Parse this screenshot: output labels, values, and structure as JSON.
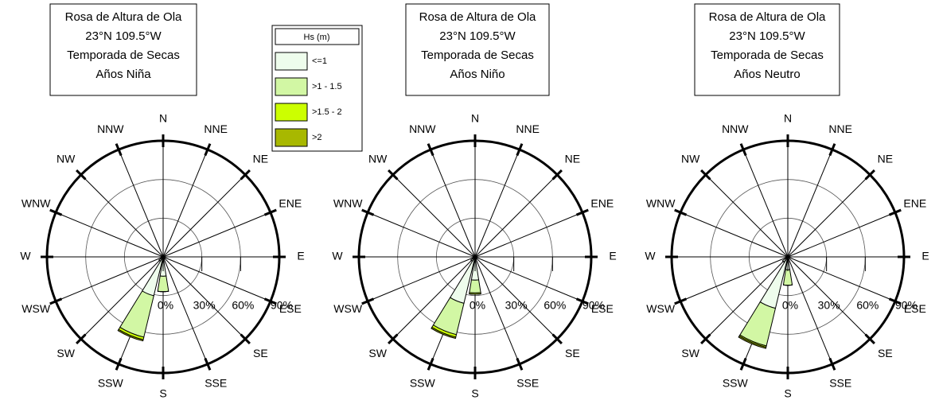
{
  "chart_data": [
    {
      "type": "rose",
      "title_lines": [
        "Rosa de Altura de Ola",
        "23°N 109.5°W",
        "Temporada de Secas",
        "Años Niña"
      ],
      "legend_title": "Hs (m)",
      "categories": [
        "N",
        "NNE",
        "NE",
        "ENE",
        "E",
        "ESE",
        "SE",
        "SSE",
        "S",
        "SSW",
        "SW",
        "WSW",
        "W",
        "WNW",
        "NW",
        "NNW"
      ],
      "rlim": [
        0,
        90
      ],
      "rticks": [
        {
          "value": 0,
          "label": "0%"
        },
        {
          "value": 30,
          "label": "30%"
        },
        {
          "value": 60,
          "label": "60%"
        },
        {
          "value": 90,
          "label": "90%"
        }
      ],
      "series": [
        {
          "name": "<=1",
          "color": "#eefcec",
          "values": [
            0,
            0,
            0,
            0,
            0,
            0,
            0,
            2,
            15,
            31,
            4,
            0,
            0,
            0,
            0,
            0
          ]
        },
        {
          "name": ">1 - 1.5",
          "color": "#d2f7a4",
          "values": [
            0,
            0,
            0,
            0,
            0,
            0,
            0,
            0,
            12,
            33,
            0,
            0,
            0,
            0,
            0,
            0
          ]
        },
        {
          "name": ">1.5 - 2",
          "color": "#ccff00",
          "values": [
            0,
            0,
            0,
            0,
            0,
            0,
            0,
            0,
            0,
            2,
            0,
            0,
            0,
            0,
            0,
            0
          ]
        },
        {
          "name": ">2",
          "color": "#a8b800",
          "values": [
            0,
            0,
            0,
            0,
            0,
            0,
            0,
            0,
            0,
            1,
            0,
            0,
            0,
            0,
            0,
            0
          ]
        }
      ]
    },
    {
      "type": "rose",
      "title_lines": [
        "Rosa de Altura de Ola",
        "23°N 109.5°W",
        "Temporada de Secas",
        "Años Niño"
      ],
      "categories": [
        "N",
        "NNE",
        "NE",
        "ENE",
        "E",
        "ESE",
        "SE",
        "SSE",
        "S",
        "SSW",
        "SW",
        "WSW",
        "W",
        "WNW",
        "NW",
        "NNW"
      ],
      "rlim": [
        0,
        90
      ],
      "rticks": [
        {
          "value": 0,
          "label": "0%"
        },
        {
          "value": 30,
          "label": "30%"
        },
        {
          "value": 60,
          "label": "60%"
        },
        {
          "value": 90,
          "label": "90%"
        }
      ],
      "series": [
        {
          "name": "<=1",
          "color": "#eefcec",
          "values": [
            0,
            0,
            0,
            0,
            0,
            0,
            0,
            1,
            18,
            37,
            4,
            0,
            0,
            0,
            0,
            0
          ]
        },
        {
          "name": ">1 - 1.5",
          "color": "#d2f7a4",
          "values": [
            0,
            0,
            0,
            0,
            0,
            0,
            0,
            1,
            10,
            25,
            0,
            0,
            0,
            0,
            0,
            0
          ]
        },
        {
          "name": ">1.5 - 2",
          "color": "#ccff00",
          "values": [
            0,
            0,
            0,
            0,
            0,
            0,
            0,
            0,
            1,
            2,
            0,
            0,
            0,
            0,
            0,
            0
          ]
        },
        {
          "name": ">2",
          "color": "#a8b800",
          "values": [
            0,
            0,
            0,
            0,
            0,
            0,
            0,
            0,
            0,
            1,
            0,
            0,
            0,
            0,
            0,
            0
          ]
        }
      ]
    },
    {
      "type": "rose",
      "title_lines": [
        "Rosa de Altura de Ola",
        "23°N 109.5°W",
        "Temporada de Secas",
        "Años Neutro"
      ],
      "categories": [
        "N",
        "NNE",
        "NE",
        "ENE",
        "E",
        "ESE",
        "SE",
        "SSE",
        "S",
        "SSW",
        "SW",
        "WSW",
        "W",
        "WNW",
        "NW",
        "NNW"
      ],
      "rlim": [
        0,
        90
      ],
      "rticks": [
        {
          "value": 0,
          "label": "0%"
        },
        {
          "value": 30,
          "label": "30%"
        },
        {
          "value": 60,
          "label": "60%"
        },
        {
          "value": 90,
          "label": "90%"
        }
      ],
      "series": [
        {
          "name": "<=1",
          "color": "#eefcec",
          "values": [
            0,
            0,
            0,
            0,
            0,
            0,
            0,
            0,
            10,
            41,
            5,
            0,
            0,
            0,
            0,
            0
          ]
        },
        {
          "name": ">1 - 1.5",
          "color": "#d2f7a4",
          "values": [
            0,
            0,
            0,
            0,
            0,
            0,
            0,
            0,
            12,
            30,
            0,
            0,
            0,
            0,
            0,
            0
          ]
        },
        {
          "name": ">1.5 - 2",
          "color": "#ccff00",
          "values": [
            0,
            0,
            0,
            0,
            0,
            0,
            0,
            0,
            0,
            1,
            0,
            0,
            0,
            0,
            0,
            0
          ]
        },
        {
          "name": ">2",
          "color": "#a8b800",
          "values": [
            0,
            0,
            0,
            0,
            0,
            0,
            0,
            0,
            0,
            1,
            0,
            0,
            0,
            0,
            0,
            0
          ]
        }
      ]
    }
  ]
}
